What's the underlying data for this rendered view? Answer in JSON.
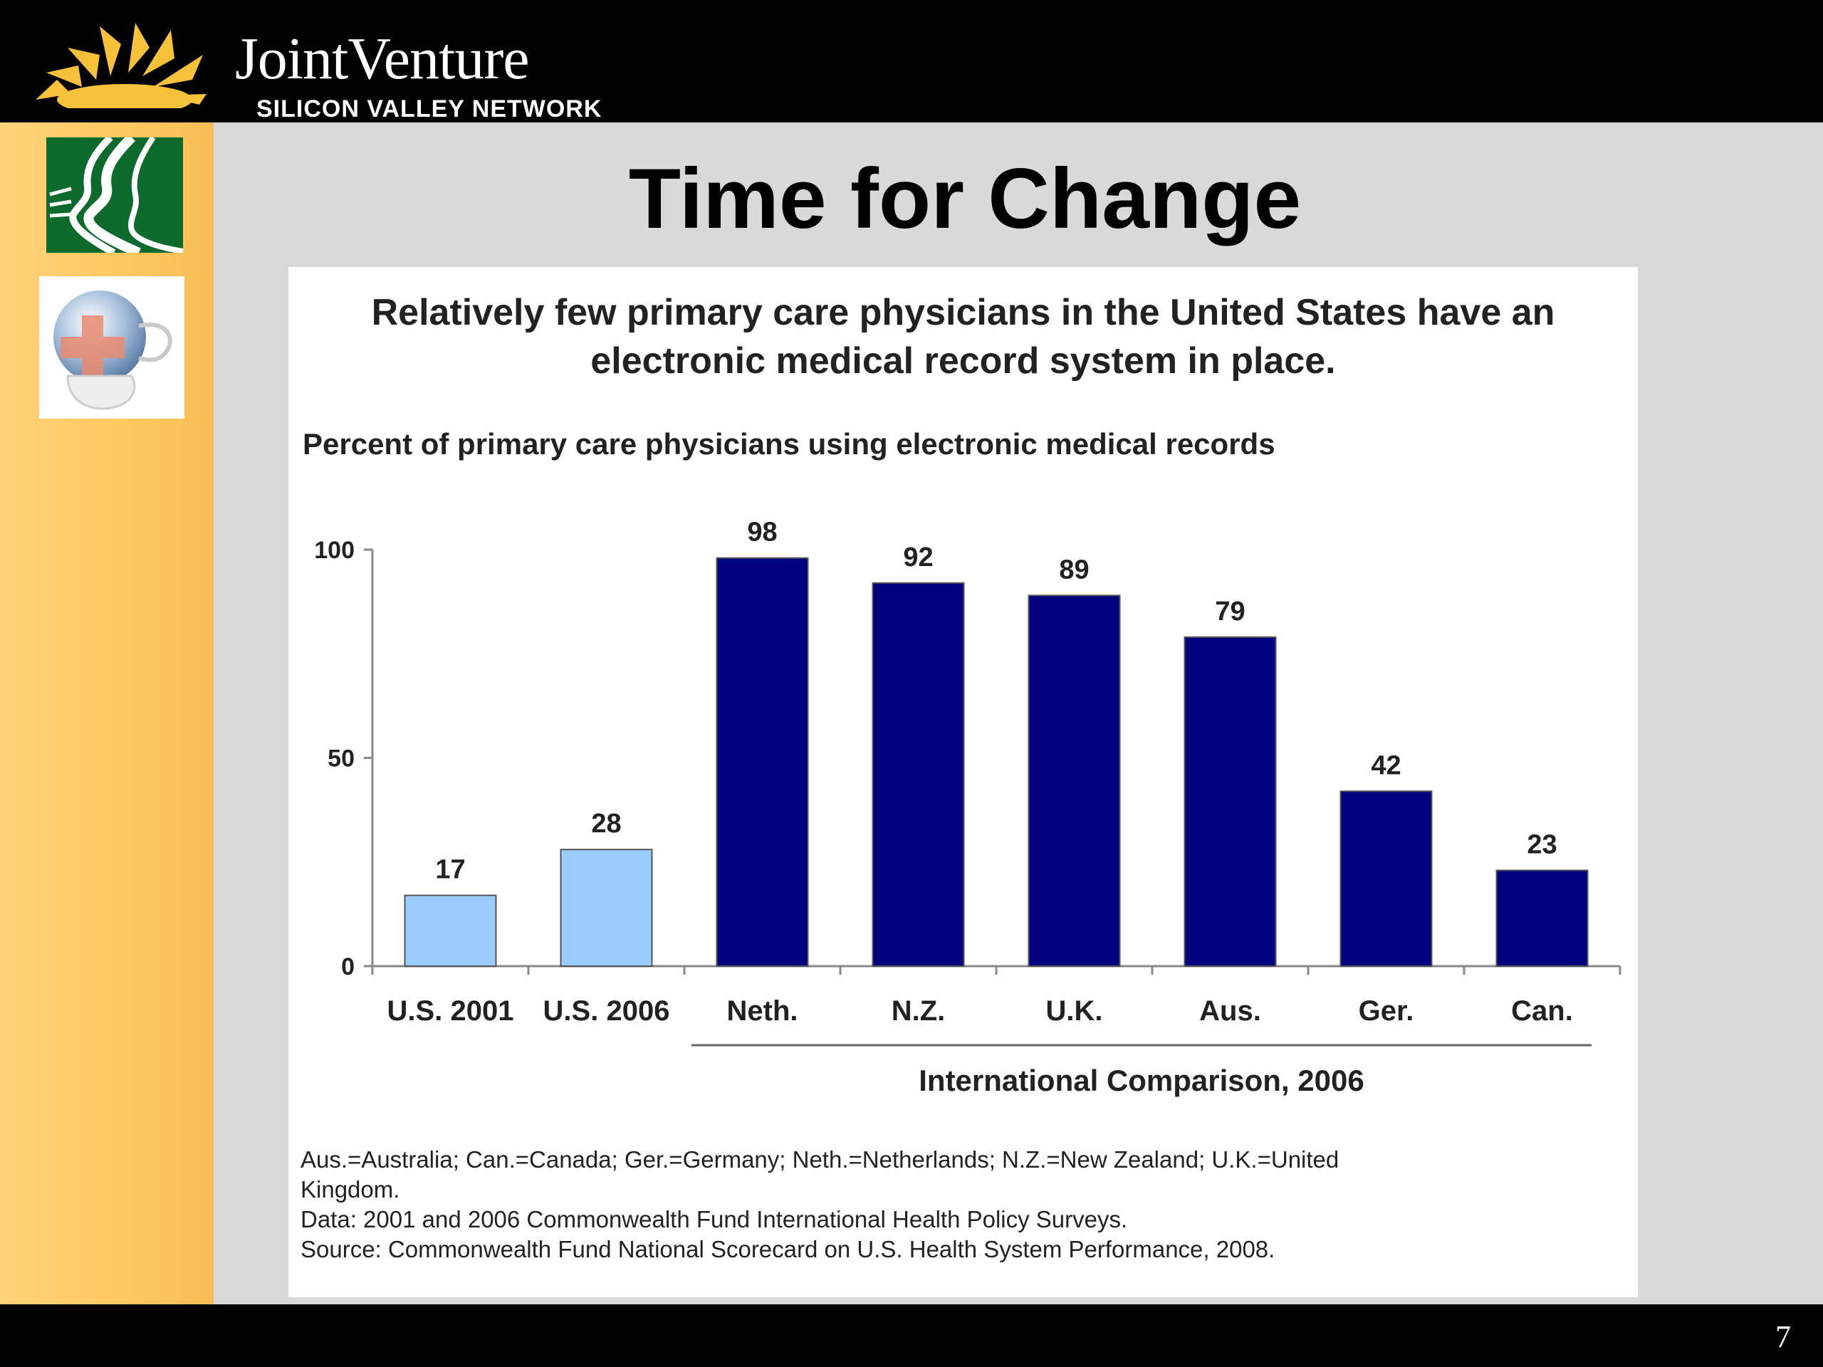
{
  "brand": {
    "name": "JointVenture",
    "subtitle": "SILICON VALLEY NETWORK"
  },
  "slide": {
    "title": "Time for Change",
    "page_number": "7"
  },
  "sidebar_icons": [
    "faces-profile-icon",
    "globe-medical-cross-icon"
  ],
  "chart_data": {
    "type": "bar",
    "headline": "Relatively few primary care physicians in the United States have an electronic medical record system in place.",
    "subtitle": "Percent of primary care physicians using electronic medical records",
    "categories": [
      "U.S. 2001",
      "U.S. 2006",
      "Neth.",
      "N.Z.",
      "U.K.",
      "Aus.",
      "Ger.",
      "Can."
    ],
    "values": [
      17,
      28,
      98,
      92,
      89,
      79,
      42,
      23
    ],
    "value_labels": [
      "17",
      "28",
      "98",
      "92",
      "89",
      "79",
      "42",
      "23"
    ],
    "bar_colors": [
      "#99ccff",
      "#99ccff",
      "#000080",
      "#000080",
      "#000080",
      "#000080",
      "#000080",
      "#000080"
    ],
    "ylim": [
      0,
      100
    ],
    "yticks": [
      0,
      50,
      100
    ],
    "ytick_labels": [
      "0",
      "50",
      "100"
    ],
    "group_label": "International Comparison, 2006",
    "grid": false,
    "footnotes": [
      "Aus.=Australia; Can.=Canada; Ger.=Germany; Neth.=Netherlands; N.Z.=New Zealand; U.K.=United Kingdom.",
      "Data: 2001 and 2006 Commonwealth Fund International Health Policy Surveys.",
      "Source: Commonwealth Fund National Scorecard on U.S. Health System Performance, 2008."
    ]
  }
}
